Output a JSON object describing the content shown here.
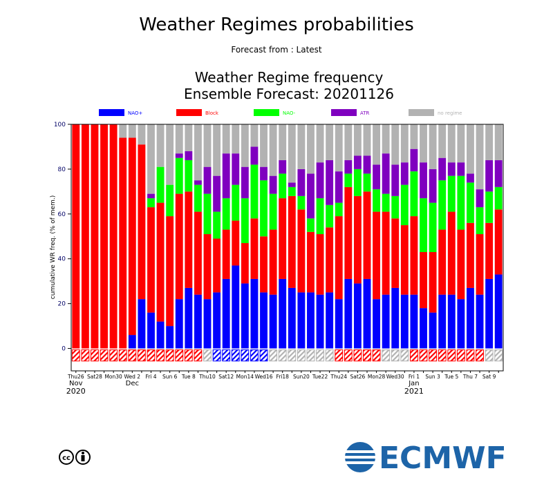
{
  "chart_data": {
    "type": "stacked-bar",
    "title": "Weather Regimes probabilities",
    "subtitle": "Forecast from : Latest",
    "chart_title": "Weather Regime frequency",
    "chart_subtitle": "Ensemble Forecast: 20201126",
    "y_label": "cumulative WR freq. (% of mem.)",
    "logo": "ECMWF",
    "ylim": [
      -10,
      100
    ],
    "yticks": [
      0,
      20,
      40,
      60,
      80,
      100
    ],
    "categories": [
      "Thu26",
      null,
      "Sat28",
      null,
      "Mon30",
      null,
      "Wed 2",
      null,
      "Fri 4",
      null,
      "Sun 6",
      null,
      "Tue 8",
      null,
      "Thu10",
      null,
      "Sat12",
      null,
      "Mon14",
      null,
      "Wed16",
      null,
      "Fri18",
      null,
      "Sun20",
      null,
      "Tue22",
      null,
      "Thu24",
      null,
      "Sat26",
      null,
      "Mon28",
      null,
      "Wed30",
      null,
      "Fri 1",
      null,
      "Sun 3",
      null,
      "Tue 5",
      null,
      "Thu 7",
      null,
      "Sat 9",
      null
    ],
    "months": [
      "Nov",
      null,
      null,
      null,
      null,
      null,
      "Dec",
      null,
      null,
      null,
      null,
      null,
      null,
      null,
      null,
      null,
      null,
      null,
      null,
      null,
      null,
      null,
      null,
      null,
      null,
      null,
      null,
      null,
      null,
      null,
      null,
      null,
      null,
      null,
      null,
      null,
      "Jan",
      null,
      null,
      null,
      null,
      null,
      null,
      null,
      null,
      null
    ],
    "years": [
      "2020",
      null,
      null,
      null,
      null,
      null,
      null,
      null,
      null,
      null,
      null,
      null,
      null,
      null,
      null,
      null,
      null,
      null,
      null,
      null,
      null,
      null,
      null,
      null,
      null,
      null,
      null,
      null,
      null,
      null,
      null,
      null,
      null,
      null,
      null,
      null,
      "2021",
      null,
      null,
      null,
      null,
      null,
      null,
      null,
      null,
      null
    ],
    "series": [
      {
        "name": "NAO+",
        "color": "#0000ff",
        "values": [
          0,
          0,
          0,
          0,
          0,
          0,
          6,
          22,
          16,
          12,
          10,
          22,
          27,
          24,
          22,
          25,
          31,
          37,
          29,
          31,
          25,
          24,
          31,
          27,
          25,
          25,
          24,
          25,
          22,
          31,
          29,
          31,
          22,
          24,
          27,
          24,
          24,
          18,
          16,
          24,
          24,
          22,
          27,
          24,
          31,
          33
        ]
      },
      {
        "name": "Block",
        "color": "#ff0000",
        "values": [
          100,
          100,
          100,
          100,
          100,
          94,
          88,
          69,
          47,
          53,
          49,
          47,
          43,
          37,
          29,
          24,
          22,
          20,
          18,
          27,
          25,
          29,
          36,
          41,
          37,
          27,
          27,
          29,
          37,
          41,
          39,
          39,
          39,
          37,
          31,
          31,
          35,
          25,
          27,
          29,
          37,
          31,
          29,
          27,
          25,
          29
        ]
      },
      {
        "name": "NAO-",
        "color": "#00ff00",
        "values": [
          0,
          0,
          0,
          0,
          0,
          0,
          0,
          0,
          4,
          16,
          14,
          16,
          14,
          12,
          18,
          12,
          14,
          16,
          20,
          24,
          25,
          16,
          11,
          4,
          6,
          6,
          16,
          10,
          6,
          6,
          12,
          8,
          10,
          8,
          10,
          18,
          20,
          24,
          22,
          22,
          16,
          24,
          18,
          12,
          14,
          10
        ]
      },
      {
        "name": "ATR",
        "color": "#7f00bf",
        "values": [
          0,
          0,
          0,
          0,
          0,
          0,
          0,
          0,
          2,
          0,
          0,
          2,
          4,
          2,
          12,
          16,
          20,
          14,
          14,
          8,
          6,
          8,
          6,
          2,
          12,
          20,
          16,
          20,
          14,
          6,
          6,
          8,
          11,
          18,
          14,
          10,
          10,
          16,
          15,
          10,
          6,
          6,
          4,
          8,
          14,
          12
        ]
      },
      {
        "name": "no regime",
        "color": "#b2b2b2",
        "values": [
          0,
          0,
          0,
          0,
          0,
          6,
          6,
          9,
          31,
          19,
          27,
          13,
          12,
          25,
          19,
          23,
          13,
          13,
          19,
          10,
          19,
          23,
          16,
          26,
          20,
          22,
          17,
          16,
          21,
          16,
          14,
          14,
          18,
          13,
          18,
          17,
          11,
          17,
          20,
          15,
          17,
          17,
          22,
          29,
          16,
          16
        ]
      }
    ],
    "markers": [
      "Block",
      "Block",
      "Block",
      "Block",
      "Block",
      "Block",
      "Block",
      "Block",
      "Block",
      "Block",
      "Block",
      "Block",
      "Block",
      "Block",
      "no regime",
      "NAO+",
      "NAO+",
      "NAO+",
      "NAO+",
      "NAO+",
      "NAO+",
      "no regime",
      "no regime",
      "no regime",
      "no regime",
      "no regime",
      "no regime",
      "no regime",
      "Block",
      "Block",
      "Block",
      "Block",
      "Block",
      "no regime",
      "no regime",
      "no regime",
      "Block",
      "Block",
      "Block",
      "Block",
      "Block",
      "Block",
      "Block",
      "Block",
      "no regime",
      "no regime"
    ]
  }
}
